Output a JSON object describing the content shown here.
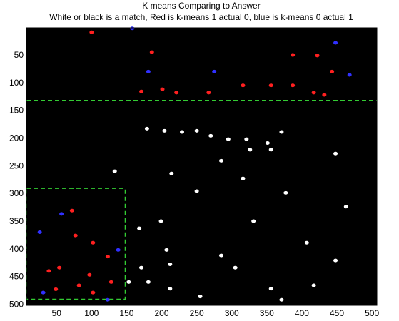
{
  "chart_data": {
    "type": "image",
    "title": "K means Comparing to Answer",
    "subtitle": "White or black is a match, Red is k-means 1 actual 0, blue is k-means 0 actual 1",
    "background": "#000000",
    "xlim": [
      7,
      507
    ],
    "ylim": [
      0,
      501
    ],
    "y_reversed": true,
    "xticks": [
      50,
      100,
      150,
      200,
      250,
      300,
      350,
      400,
      450,
      500
    ],
    "yticks": [
      50,
      100,
      150,
      200,
      250,
      300,
      350,
      400,
      450,
      500
    ],
    "series": [
      {
        "color": "#ffffff",
        "x": [
          179,
          204,
          229,
          250,
          270,
          295,
          321,
          326,
          351,
          371,
          133,
          214,
          250,
          285,
          316,
          356,
          377,
          168,
          199,
          171,
          207,
          212,
          181,
          212,
          285,
          305,
          356,
          371,
          255,
          417,
          448,
          463,
          407,
          331,
          153,
          448
        ],
        "values": [
          182,
          186,
          188,
          186,
          195,
          201,
          201,
          220,
          208,
          188,
          259,
          263,
          295,
          240,
          272,
          220,
          298,
          362,
          349,
          433,
          401,
          427,
          459,
          471,
          411,
          433,
          471,
          491,
          485,
          465,
          420,
          323,
          388,
          349,
          459,
          227
        ]
      },
      {
        "color": "#ff2020",
        "x": [
          100,
          186,
          387,
          422,
          443,
          356,
          387,
          171,
          201,
          221,
          267,
          316,
          417,
          432,
          77,
          102,
          82,
          54,
          49,
          97,
          123,
          39,
          102,
          128,
          72
        ],
        "values": [
          8,
          44,
          49,
          50,
          79,
          104,
          104,
          115,
          111,
          117,
          117,
          104,
          117,
          121,
          375,
          388,
          465,
          433,
          472,
          446,
          413,
          439,
          478,
          459,
          330
        ]
      },
      {
        "color": "#3030ff",
        "x": [
          158,
          181,
          275,
          448,
          468,
          26,
          31,
          57,
          123,
          138
        ],
        "values": [
          1,
          79,
          79,
          27,
          85,
          369,
          478,
          336,
          491,
          401
        ]
      }
    ],
    "annotations": [
      {
        "type": "hline",
        "color": "#33cc33",
        "y": 131,
        "x": [
          7,
          507
        ]
      },
      {
        "type": "rect",
        "color": "#33cc33",
        "x": [
          7,
          148
        ],
        "y": [
          290,
          490
        ]
      }
    ]
  }
}
